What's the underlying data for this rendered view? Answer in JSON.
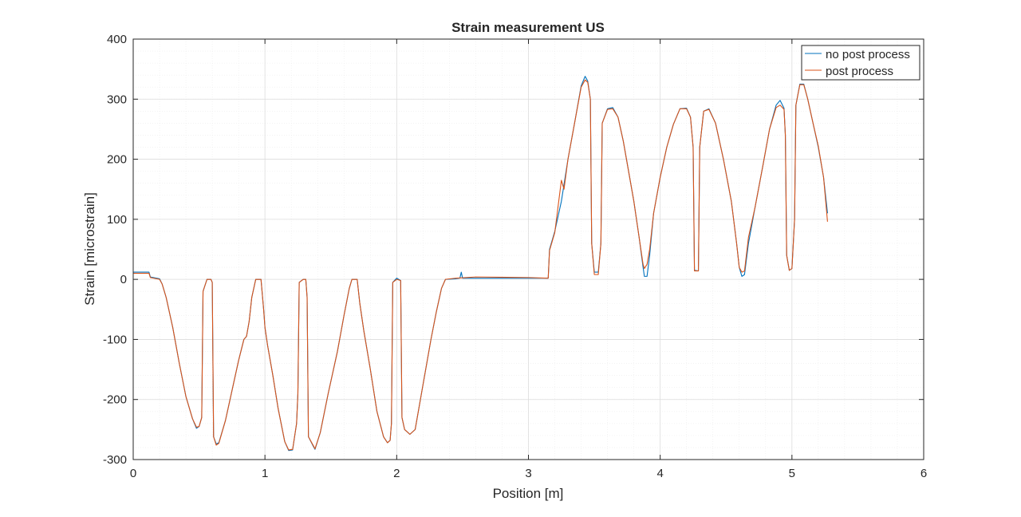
{
  "chart_data": {
    "type": "line",
    "title": "Strain measurement US",
    "xlabel": "Position [m]",
    "ylabel": "Strain [microstrain]",
    "xlim": [
      0,
      6
    ],
    "ylim": [
      -300,
      400
    ],
    "x_ticks": [
      0,
      1,
      2,
      3,
      4,
      5,
      6
    ],
    "y_ticks": [
      -300,
      -200,
      -100,
      0,
      100,
      200,
      300,
      400
    ],
    "x_tick_labels": [
      "0",
      "1",
      "2",
      "3",
      "4",
      "5",
      "6"
    ],
    "y_tick_labels": [
      "-300",
      "-200",
      "-100",
      "0",
      "100",
      "200",
      "300",
      "400"
    ],
    "grid": true,
    "minor_grid": true,
    "legend_position": "top-right",
    "series": [
      {
        "name": "no post process",
        "color": "#0072BD",
        "points": [
          [
            0,
            12
          ],
          [
            0.12,
            12
          ],
          [
            0.13,
            4
          ],
          [
            0.2,
            1
          ],
          [
            0.22,
            -8
          ],
          [
            0.25,
            -30
          ],
          [
            0.3,
            -80
          ],
          [
            0.35,
            -140
          ],
          [
            0.4,
            -195
          ],
          [
            0.45,
            -232
          ],
          [
            0.48,
            -248
          ],
          [
            0.5,
            -245
          ],
          [
            0.52,
            -230
          ],
          [
            0.53,
            -20
          ],
          [
            0.56,
            0
          ],
          [
            0.59,
            0
          ],
          [
            0.6,
            -5
          ],
          [
            0.61,
            -262
          ],
          [
            0.63,
            -274
          ],
          [
            0.65,
            -272
          ],
          [
            0.7,
            -235
          ],
          [
            0.75,
            -185
          ],
          [
            0.8,
            -135
          ],
          [
            0.84,
            -100
          ],
          [
            0.86,
            -95
          ],
          [
            0.88,
            -70
          ],
          [
            0.9,
            -30
          ],
          [
            0.93,
            0
          ],
          [
            0.97,
            0
          ],
          [
            0.99,
            -50
          ],
          [
            1.0,
            -80
          ],
          [
            1.02,
            -110
          ],
          [
            1.06,
            -160
          ],
          [
            1.1,
            -215
          ],
          [
            1.15,
            -270
          ],
          [
            1.18,
            -285
          ],
          [
            1.21,
            -284
          ],
          [
            1.24,
            -240
          ],
          [
            1.25,
            -190
          ],
          [
            1.26,
            -5
          ],
          [
            1.29,
            0
          ],
          [
            1.31,
            0
          ],
          [
            1.32,
            -30
          ],
          [
            1.33,
            -262
          ],
          [
            1.36,
            -275
          ],
          [
            1.38,
            -283
          ],
          [
            1.42,
            -255
          ],
          [
            1.48,
            -190
          ],
          [
            1.55,
            -120
          ],
          [
            1.6,
            -60
          ],
          [
            1.64,
            -15
          ],
          [
            1.66,
            0
          ],
          [
            1.7,
            0
          ],
          [
            1.72,
            -40
          ],
          [
            1.75,
            -85
          ],
          [
            1.8,
            -150
          ],
          [
            1.85,
            -220
          ],
          [
            1.9,
            -262
          ],
          [
            1.93,
            -272
          ],
          [
            1.95,
            -268
          ],
          [
            1.96,
            -240
          ],
          [
            1.97,
            -5
          ],
          [
            2.0,
            2
          ],
          [
            2.03,
            -2
          ],
          [
            2.04,
            -230
          ],
          [
            2.06,
            -250
          ],
          [
            2.1,
            -258
          ],
          [
            2.14,
            -250
          ],
          [
            2.18,
            -200
          ],
          [
            2.22,
            -150
          ],
          [
            2.26,
            -100
          ],
          [
            2.3,
            -55
          ],
          [
            2.34,
            -15
          ],
          [
            2.37,
            0
          ],
          [
            2.45,
            1
          ],
          [
            2.48,
            2
          ],
          [
            2.49,
            12
          ],
          [
            2.5,
            2
          ],
          [
            2.6,
            2
          ],
          [
            3.0,
            2
          ],
          [
            3.15,
            2
          ],
          [
            3.16,
            50
          ],
          [
            3.2,
            80
          ],
          [
            3.25,
            130
          ],
          [
            3.3,
            200
          ],
          [
            3.35,
            260
          ],
          [
            3.4,
            322
          ],
          [
            3.43,
            338
          ],
          [
            3.45,
            330
          ],
          [
            3.47,
            300
          ],
          [
            3.48,
            60
          ],
          [
            3.5,
            12
          ],
          [
            3.53,
            12
          ],
          [
            3.55,
            60
          ],
          [
            3.56,
            260
          ],
          [
            3.6,
            284
          ],
          [
            3.64,
            286
          ],
          [
            3.68,
            270
          ],
          [
            3.72,
            230
          ],
          [
            3.76,
            180
          ],
          [
            3.8,
            130
          ],
          [
            3.84,
            70
          ],
          [
            3.87,
            20
          ],
          [
            3.88,
            5
          ],
          [
            3.9,
            5
          ],
          [
            3.92,
            40
          ],
          [
            3.95,
            110
          ],
          [
            4.0,
            170
          ],
          [
            4.05,
            220
          ],
          [
            4.1,
            258
          ],
          [
            4.15,
            284
          ],
          [
            4.2,
            285
          ],
          [
            4.23,
            270
          ],
          [
            4.25,
            220
          ],
          [
            4.26,
            15
          ],
          [
            4.29,
            14
          ],
          [
            4.3,
            220
          ],
          [
            4.33,
            280
          ],
          [
            4.37,
            284
          ],
          [
            4.42,
            260
          ],
          [
            4.48,
            200
          ],
          [
            4.54,
            130
          ],
          [
            4.58,
            60
          ],
          [
            4.6,
            20
          ],
          [
            4.62,
            5
          ],
          [
            4.64,
            8
          ],
          [
            4.67,
            60
          ],
          [
            4.72,
            120
          ],
          [
            4.78,
            190
          ],
          [
            4.83,
            250
          ],
          [
            4.88,
            290
          ],
          [
            4.91,
            298
          ],
          [
            4.94,
            285
          ],
          [
            4.95,
            240
          ],
          [
            4.96,
            40
          ],
          [
            4.98,
            15
          ],
          [
            5.0,
            18
          ],
          [
            5.02,
            100
          ],
          [
            5.03,
            290
          ],
          [
            5.06,
            325
          ],
          [
            5.09,
            325
          ],
          [
            5.12,
            300
          ],
          [
            5.16,
            260
          ],
          [
            5.2,
            220
          ],
          [
            5.24,
            170
          ],
          [
            5.27,
            110
          ]
        ]
      },
      {
        "name": "post process",
        "color": "#D95319",
        "points": [
          [
            0,
            10
          ],
          [
            0.12,
            10
          ],
          [
            0.13,
            3
          ],
          [
            0.2,
            0
          ],
          [
            0.22,
            -8
          ],
          [
            0.25,
            -30
          ],
          [
            0.3,
            -80
          ],
          [
            0.35,
            -140
          ],
          [
            0.4,
            -195
          ],
          [
            0.45,
            -232
          ],
          [
            0.48,
            -246
          ],
          [
            0.5,
            -245
          ],
          [
            0.52,
            -230
          ],
          [
            0.53,
            -20
          ],
          [
            0.56,
            0
          ],
          [
            0.59,
            0
          ],
          [
            0.6,
            -5
          ],
          [
            0.61,
            -262
          ],
          [
            0.63,
            -276
          ],
          [
            0.65,
            -273
          ],
          [
            0.7,
            -235
          ],
          [
            0.75,
            -185
          ],
          [
            0.8,
            -135
          ],
          [
            0.84,
            -100
          ],
          [
            0.86,
            -95
          ],
          [
            0.88,
            -70
          ],
          [
            0.9,
            -30
          ],
          [
            0.93,
            0
          ],
          [
            0.97,
            0
          ],
          [
            0.99,
            -50
          ],
          [
            1.0,
            -80
          ],
          [
            1.02,
            -110
          ],
          [
            1.06,
            -160
          ],
          [
            1.1,
            -215
          ],
          [
            1.15,
            -270
          ],
          [
            1.18,
            -284
          ],
          [
            1.21,
            -283
          ],
          [
            1.24,
            -240
          ],
          [
            1.25,
            -190
          ],
          [
            1.26,
            -5
          ],
          [
            1.29,
            0
          ],
          [
            1.31,
            0
          ],
          [
            1.32,
            -30
          ],
          [
            1.33,
            -262
          ],
          [
            1.36,
            -274
          ],
          [
            1.38,
            -282
          ],
          [
            1.42,
            -255
          ],
          [
            1.48,
            -190
          ],
          [
            1.55,
            -120
          ],
          [
            1.6,
            -60
          ],
          [
            1.64,
            -15
          ],
          [
            1.66,
            0
          ],
          [
            1.7,
            0
          ],
          [
            1.72,
            -40
          ],
          [
            1.75,
            -85
          ],
          [
            1.8,
            -150
          ],
          [
            1.85,
            -220
          ],
          [
            1.9,
            -262
          ],
          [
            1.93,
            -272
          ],
          [
            1.95,
            -268
          ],
          [
            1.96,
            -240
          ],
          [
            1.97,
            -5
          ],
          [
            2.0,
            0
          ],
          [
            2.03,
            -2
          ],
          [
            2.04,
            -230
          ],
          [
            2.06,
            -250
          ],
          [
            2.1,
            -258
          ],
          [
            2.14,
            -250
          ],
          [
            2.18,
            -200
          ],
          [
            2.22,
            -150
          ],
          [
            2.26,
            -100
          ],
          [
            2.3,
            -55
          ],
          [
            2.34,
            -15
          ],
          [
            2.37,
            0
          ],
          [
            2.45,
            2
          ],
          [
            2.6,
            4
          ],
          [
            3.0,
            3
          ],
          [
            3.15,
            2
          ],
          [
            3.16,
            48
          ],
          [
            3.2,
            78
          ],
          [
            3.25,
            165
          ],
          [
            3.27,
            150
          ],
          [
            3.3,
            200
          ],
          [
            3.35,
            260
          ],
          [
            3.4,
            320
          ],
          [
            3.43,
            332
          ],
          [
            3.45,
            328
          ],
          [
            3.47,
            300
          ],
          [
            3.48,
            60
          ],
          [
            3.5,
            8
          ],
          [
            3.53,
            8
          ],
          [
            3.55,
            60
          ],
          [
            3.56,
            260
          ],
          [
            3.6,
            283
          ],
          [
            3.64,
            284
          ],
          [
            3.68,
            270
          ],
          [
            3.72,
            230
          ],
          [
            3.76,
            180
          ],
          [
            3.8,
            130
          ],
          [
            3.84,
            70
          ],
          [
            3.87,
            25
          ],
          [
            3.88,
            18
          ],
          [
            3.9,
            25
          ],
          [
            3.92,
            50
          ],
          [
            3.95,
            110
          ],
          [
            4.0,
            170
          ],
          [
            4.05,
            220
          ],
          [
            4.1,
            258
          ],
          [
            4.15,
            284
          ],
          [
            4.2,
            284
          ],
          [
            4.23,
            270
          ],
          [
            4.25,
            220
          ],
          [
            4.26,
            14
          ],
          [
            4.29,
            14
          ],
          [
            4.3,
            220
          ],
          [
            4.33,
            280
          ],
          [
            4.37,
            283
          ],
          [
            4.42,
            260
          ],
          [
            4.48,
            200
          ],
          [
            4.54,
            130
          ],
          [
            4.58,
            60
          ],
          [
            4.6,
            20
          ],
          [
            4.62,
            12
          ],
          [
            4.64,
            14
          ],
          [
            4.67,
            70
          ],
          [
            4.72,
            120
          ],
          [
            4.78,
            190
          ],
          [
            4.83,
            250
          ],
          [
            4.88,
            286
          ],
          [
            4.91,
            290
          ],
          [
            4.94,
            283
          ],
          [
            4.95,
            240
          ],
          [
            4.96,
            40
          ],
          [
            4.98,
            15
          ],
          [
            5.0,
            18
          ],
          [
            5.02,
            100
          ],
          [
            5.03,
            290
          ],
          [
            5.06,
            324
          ],
          [
            5.09,
            324
          ],
          [
            5.12,
            300
          ],
          [
            5.16,
            260
          ],
          [
            5.2,
            222
          ],
          [
            5.24,
            170
          ],
          [
            5.27,
            96
          ]
        ]
      }
    ]
  }
}
